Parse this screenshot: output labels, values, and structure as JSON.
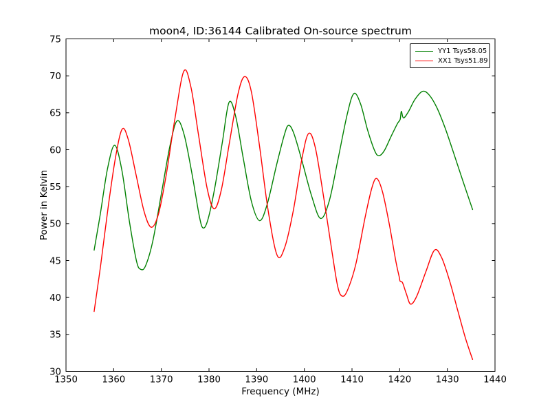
{
  "chart_data": {
    "type": "line",
    "title": "moon4, ID:36144 Calibrated On-source spectrum",
    "xlabel": "Frequency (MHz)",
    "ylabel": "Power in Kelvin",
    "xlim": [
      1350,
      1440
    ],
    "ylim": [
      30,
      75
    ],
    "xticks": [
      1350,
      1360,
      1370,
      1380,
      1390,
      1400,
      1410,
      1420,
      1430,
      1440
    ],
    "yticks": [
      30,
      35,
      40,
      45,
      50,
      55,
      60,
      65,
      70,
      75
    ],
    "grid": false,
    "legend_position": "upper right",
    "axis_color": "#000000",
    "background_color": "#ffffff",
    "series": [
      {
        "name": "YY1 Tsys58.05",
        "color": "#008000",
        "points": [
          [
            1355.9,
            46.4
          ],
          [
            1357.2,
            51.3
          ],
          [
            1358.7,
            57.4
          ],
          [
            1360.2,
            60.6
          ],
          [
            1361.7,
            57.3
          ],
          [
            1363.3,
            50.3
          ],
          [
            1364.8,
            44.9
          ],
          [
            1365.7,
            43.8
          ],
          [
            1366.7,
            44.3
          ],
          [
            1368.2,
            47.6
          ],
          [
            1370.0,
            54.0
          ],
          [
            1371.8,
            60.5
          ],
          [
            1373.3,
            63.9
          ],
          [
            1374.8,
            62.0
          ],
          [
            1376.5,
            56.5
          ],
          [
            1378.0,
            50.9
          ],
          [
            1378.8,
            49.4
          ],
          [
            1379.8,
            50.6
          ],
          [
            1381.2,
            54.8
          ],
          [
            1382.8,
            61.0
          ],
          [
            1384.2,
            66.4
          ],
          [
            1385.6,
            64.5
          ],
          [
            1387.2,
            58.8
          ],
          [
            1388.9,
            53.0
          ],
          [
            1390.6,
            50.4
          ],
          [
            1392.2,
            52.6
          ],
          [
            1394.2,
            58.0
          ],
          [
            1395.8,
            62.0
          ],
          [
            1396.7,
            63.3
          ],
          [
            1397.8,
            62.2
          ],
          [
            1399.5,
            58.5
          ],
          [
            1401.5,
            53.8
          ],
          [
            1403.4,
            50.7
          ],
          [
            1405.2,
            53.0
          ],
          [
            1407.0,
            58.5
          ],
          [
            1409.0,
            64.8
          ],
          [
            1410.4,
            67.6
          ],
          [
            1411.8,
            66.2
          ],
          [
            1413.3,
            62.6
          ],
          [
            1414.8,
            59.8
          ],
          [
            1415.7,
            59.2
          ],
          [
            1416.8,
            59.9
          ],
          [
            1418.2,
            61.8
          ],
          [
            1419.5,
            63.5
          ],
          [
            1420.1,
            64.1
          ],
          [
            1420.35,
            65.2
          ],
          [
            1420.8,
            64.3
          ],
          [
            1421.8,
            65.1
          ],
          [
            1423.2,
            66.8
          ],
          [
            1424.8,
            67.9
          ],
          [
            1426.2,
            67.4
          ],
          [
            1427.8,
            65.7
          ],
          [
            1429.5,
            63.0
          ],
          [
            1431.3,
            59.6
          ],
          [
            1433.3,
            55.7
          ],
          [
            1435.3,
            51.9
          ]
        ]
      },
      {
        "name": "XX1 Tsys51.89",
        "color": "#ff0000",
        "points": [
          [
            1355.9,
            38.1
          ],
          [
            1357.3,
            44.5
          ],
          [
            1358.9,
            52.5
          ],
          [
            1360.4,
            59.0
          ],
          [
            1361.8,
            62.8
          ],
          [
            1363.1,
            61.3
          ],
          [
            1364.7,
            56.6
          ],
          [
            1366.4,
            51.6
          ],
          [
            1367.9,
            49.5
          ],
          [
            1369.4,
            51.3
          ],
          [
            1371.0,
            56.5
          ],
          [
            1372.8,
            64.0
          ],
          [
            1374.7,
            70.6
          ],
          [
            1376.2,
            68.5
          ],
          [
            1377.8,
            62.0
          ],
          [
            1379.6,
            54.8
          ],
          [
            1381.1,
            52.0
          ],
          [
            1382.6,
            54.6
          ],
          [
            1384.3,
            61.0
          ],
          [
            1386.1,
            67.6
          ],
          [
            1387.5,
            69.9
          ],
          [
            1388.9,
            67.8
          ],
          [
            1390.6,
            60.5
          ],
          [
            1392.4,
            51.8
          ],
          [
            1394.3,
            45.7
          ],
          [
            1395.9,
            46.8
          ],
          [
            1397.7,
            51.8
          ],
          [
            1399.5,
            58.8
          ],
          [
            1400.9,
            62.2
          ],
          [
            1402.3,
            60.3
          ],
          [
            1404.0,
            53.8
          ],
          [
            1405.8,
            46.2
          ],
          [
            1407.0,
            41.5
          ],
          [
            1407.9,
            40.2
          ],
          [
            1409.0,
            40.9
          ],
          [
            1410.8,
            44.5
          ],
          [
            1412.8,
            51.0
          ],
          [
            1414.2,
            54.9
          ],
          [
            1415.2,
            56.1
          ],
          [
            1416.4,
            54.3
          ],
          [
            1417.8,
            50.0
          ],
          [
            1419.2,
            44.9
          ],
          [
            1419.9,
            42.8
          ],
          [
            1420.1,
            42.2
          ],
          [
            1420.6,
            42.0
          ],
          [
            1421.4,
            40.5
          ],
          [
            1422.3,
            39.1
          ],
          [
            1423.6,
            40.2
          ],
          [
            1425.5,
            43.5
          ],
          [
            1427.3,
            46.4
          ],
          [
            1428.8,
            45.4
          ],
          [
            1430.5,
            42.2
          ],
          [
            1432.2,
            38.2
          ],
          [
            1433.8,
            34.5
          ],
          [
            1435.3,
            31.6
          ]
        ]
      }
    ]
  }
}
